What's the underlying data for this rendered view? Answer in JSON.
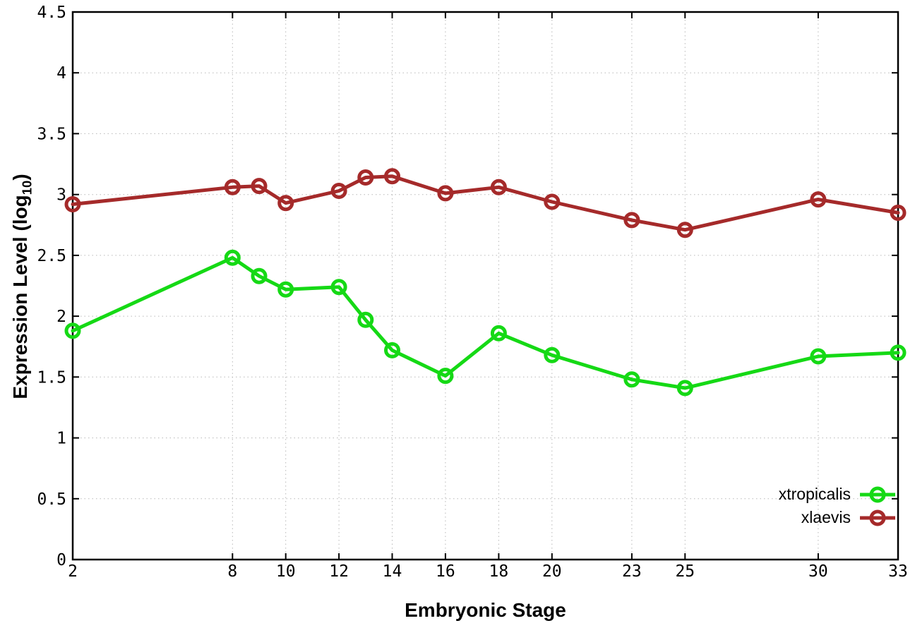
{
  "chart_data": {
    "type": "line",
    "xlabel": "Embryonic Stage",
    "ylabel_prefix": "Expression Level (log",
    "ylabel_sub": "10",
    "ylabel_suffix": ")",
    "xlim": [
      2,
      33
    ],
    "ylim": [
      0,
      4.5
    ],
    "xticks": [
      2,
      8,
      10,
      12,
      14,
      16,
      18,
      20,
      23,
      25,
      30,
      33
    ],
    "xtick_labels": [
      "2",
      "8",
      "10",
      "12",
      "14",
      "16",
      "18",
      "20",
      "23",
      "25",
      "30",
      "33"
    ],
    "yticks": [
      0,
      0.5,
      1,
      1.5,
      2,
      2.5,
      3,
      3.5,
      4,
      4.5
    ],
    "ytick_labels": [
      "0",
      "0.5",
      "1",
      "1.5",
      "2",
      "2.5",
      "3",
      "3.5",
      "4",
      "4.5"
    ],
    "grid": true,
    "legend_position": "inside-bottom-right",
    "x": [
      2,
      8,
      9,
      10,
      12,
      13,
      14,
      16,
      18,
      20,
      23,
      25,
      30,
      33
    ],
    "series": [
      {
        "name": "xtropicalis",
        "color": "#15d915",
        "values": [
          1.88,
          2.48,
          2.33,
          2.22,
          2.24,
          1.97,
          1.72,
          1.51,
          1.86,
          1.68,
          1.48,
          1.41,
          1.67,
          1.7
        ]
      },
      {
        "name": "xlaevis",
        "color": "#a52a2a",
        "values": [
          2.92,
          3.06,
          3.07,
          2.93,
          3.03,
          3.14,
          3.15,
          3.01,
          3.06,
          2.94,
          2.79,
          2.71,
          2.96,
          2.85
        ]
      }
    ],
    "axis_color": "#000000",
    "grid_color": "#b8b8b8",
    "background": "#ffffff"
  }
}
